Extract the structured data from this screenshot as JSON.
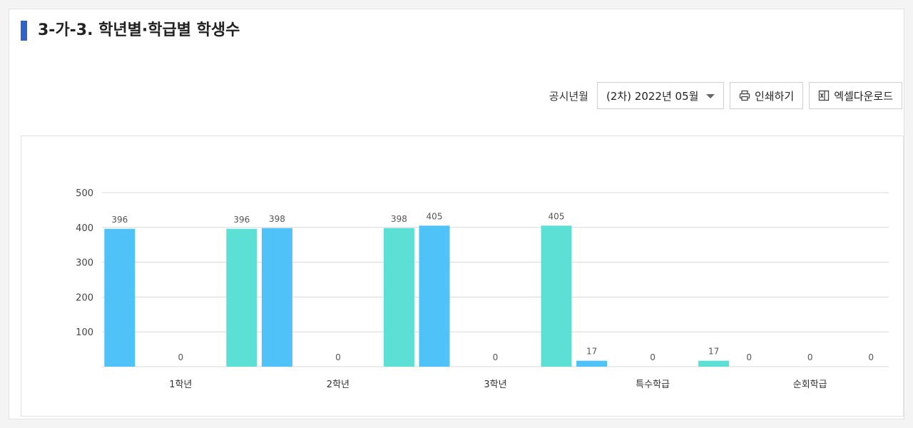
{
  "header": {
    "title": "3-가-3. 학년별·학급별 학생수"
  },
  "controls": {
    "period_label": "공시년월",
    "period_value": "(2차) 2022년 05월",
    "print_label": "인쇄하기",
    "excel_label": "엑셀다운로드",
    "icons": [
      "printer-icon",
      "excel-icon",
      "caret-down-icon"
    ]
  },
  "colors": {
    "accent": "#2f63c7",
    "series_a": "#4fc3f7",
    "series_b": "#5ce0d6",
    "grid": "#d8d8d8"
  },
  "chart_data": {
    "type": "bar",
    "categories": [
      "1학년",
      "2학년",
      "3학년",
      "특수학급",
      "순회학급"
    ],
    "series": [
      {
        "values": [
          396,
          398,
          405,
          17,
          0
        ],
        "color": "#4fc3f7"
      },
      {
        "values": [
          0,
          0,
          0,
          0,
          0
        ],
        "color": "#5ce0d6"
      },
      {
        "values": [
          396,
          398,
          405,
          17,
          0
        ],
        "color": "#5ce0d6"
      }
    ],
    "yticks": [
      100,
      200,
      300,
      400,
      500
    ],
    "ylim": [
      0,
      500
    ],
    "grid": true,
    "legend": "none"
  }
}
